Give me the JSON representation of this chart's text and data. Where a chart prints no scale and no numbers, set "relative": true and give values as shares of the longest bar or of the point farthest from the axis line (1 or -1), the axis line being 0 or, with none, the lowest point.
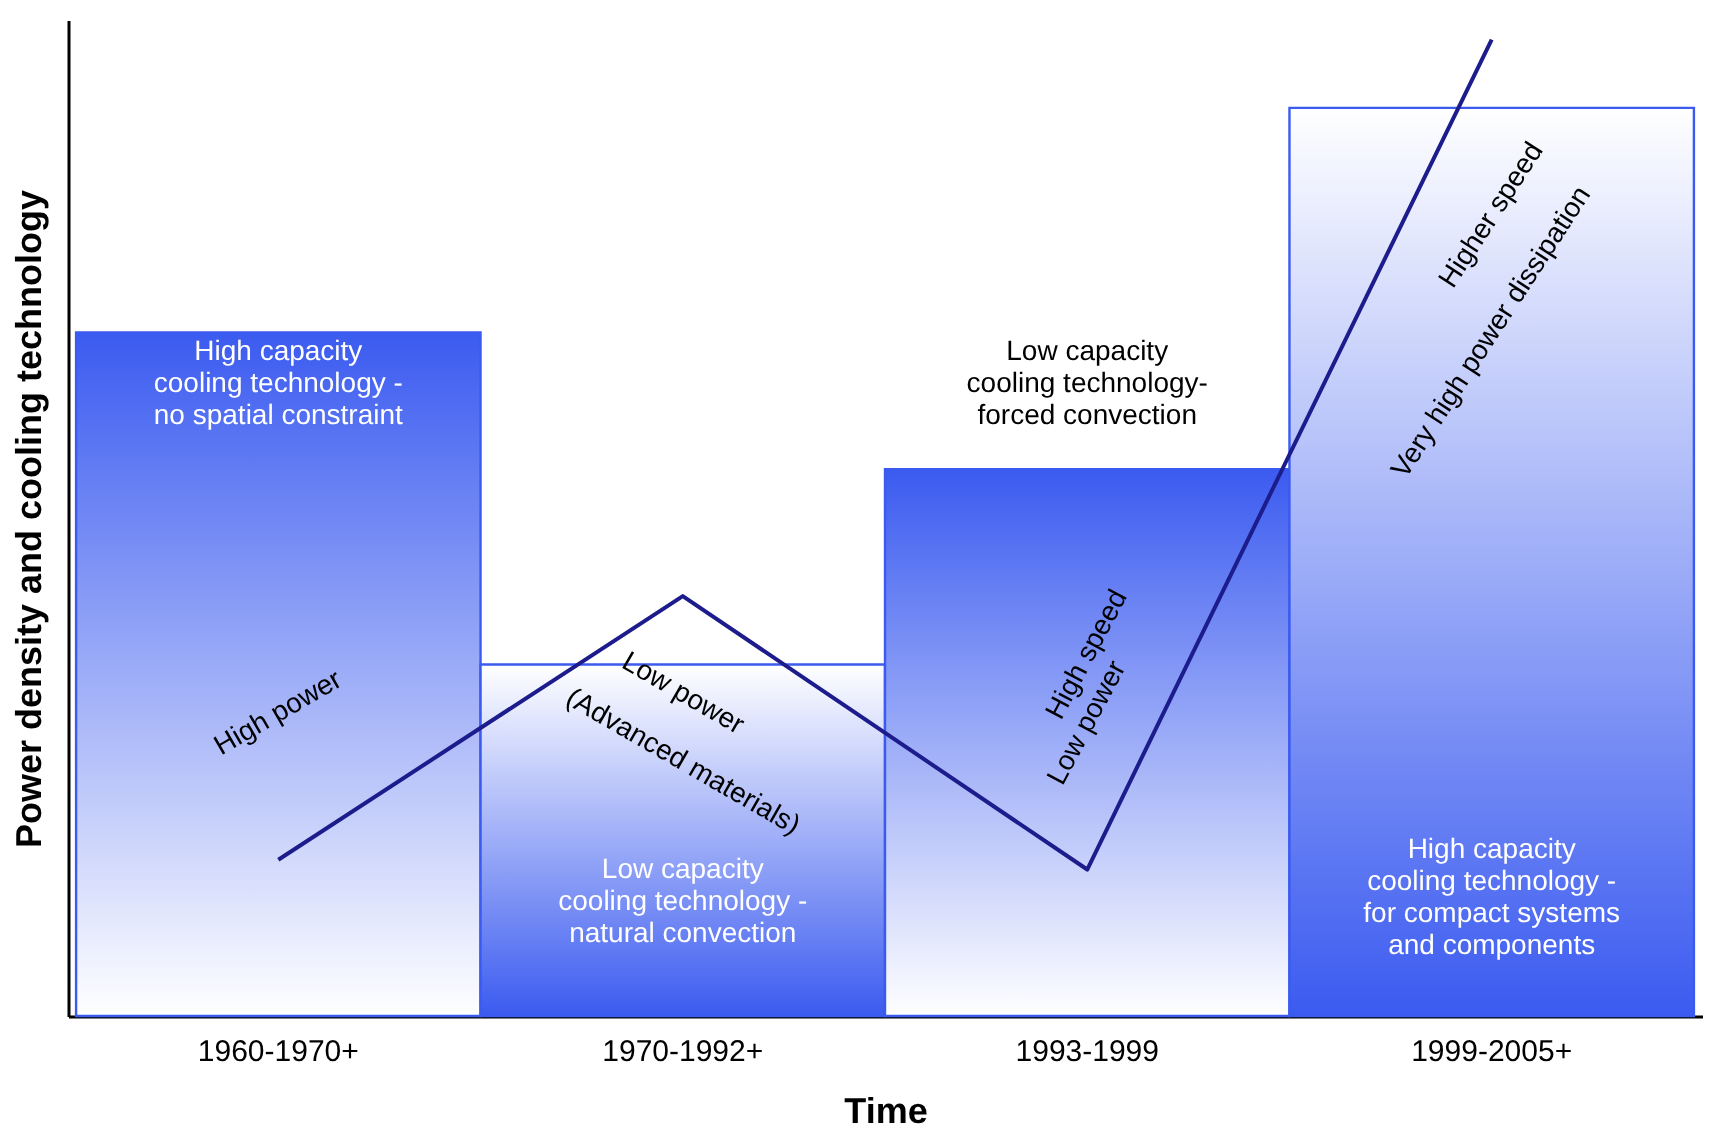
{
  "chart_data": {
    "type": "bar",
    "relative": true,
    "xlabel": "Time",
    "ylabel": "Power density and cooling technology",
    "categories": [
      "1960-1970+",
      "1970-1992+",
      "1993-1999",
      "1999-2005+"
    ],
    "series": [
      {
        "color": "#3b5bf0",
        "values": [
          0.7,
          0.36,
          0.56,
          0.93
        ]
      },
      {
        "type": "line",
        "color": "#1c1c8c",
        "values": [
          0.16,
          0.43,
          0.15,
          1
        ]
      }
    ],
    "annotations": [
      "High power",
      "Low power",
      "(Advanced materials)",
      "High speed",
      "Low power",
      "Higher speed",
      "Very high power dissipation",
      "High capacity\ncooling technology -\nno spatial constraint",
      "Low capacity\ncooling technology -\nnatural convection",
      "Low capacity\ncooling technology-\nforced convection",
      "High capacity\ncooling technology -\nfor compact systems\nand components"
    ],
    "grid": false,
    "marker": "none"
  }
}
